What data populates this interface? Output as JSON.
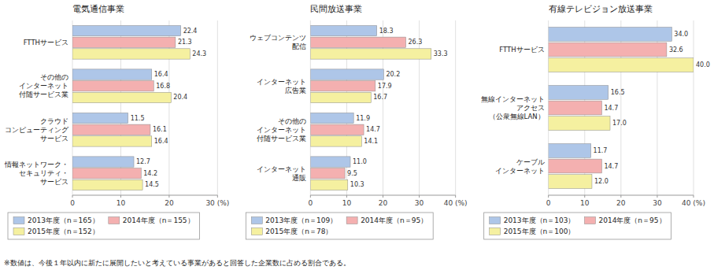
{
  "chart_data": [
    {
      "type": "bar",
      "orientation": "horizontal",
      "title": "電気通信事業",
      "categories": [
        "FTTHサービス",
        "その他の\nインターネット\n付随サービス業",
        "クラウド\nコンピューティング\nサービス",
        "情報ネットワーク・\nセキュリティ・\nサービス"
      ],
      "series": [
        {
          "name": "2013年度（n＝165）",
          "color": "#aec6e8",
          "values": [
            22.4,
            16.4,
            11.5,
            12.7
          ]
        },
        {
          "name": "2014年度（n＝155）",
          "color": "#f4b0b0",
          "values": [
            21.3,
            16.8,
            16.1,
            14.2
          ]
        },
        {
          "name": "2015年度（n＝152）",
          "color": "#f5f0a0",
          "values": [
            24.3,
            20.4,
            16.4,
            14.5
          ]
        }
      ],
      "xlim": [
        0,
        30
      ],
      "xticks": [
        0,
        10,
        20,
        {
          "value": 30,
          "label": "30 (%)"
        }
      ],
      "grid": true,
      "data_labels": true,
      "legend": "bottom",
      "annotations": [
        "※数値は、今後１年以内に新たに展開したいと考えている事業があると回答した企業数に占める割合である。"
      ]
    },
    {
      "type": "bar",
      "orientation": "horizontal",
      "title": "民間放送事業",
      "categories": [
        "ウェブコンテンツ\n配信",
        "インターネット\n広告業",
        "その他の\nインターネット\n付随サービス業",
        "インターネット\n通販"
      ],
      "series": [
        {
          "name": "2013年度（n＝109）",
          "color": "#aec6e8",
          "values": [
            18.3,
            20.2,
            11.9,
            11.0
          ],
          "value_labels": [
            "18.3",
            "20.2",
            "11.9",
            "11.0"
          ]
        },
        {
          "name": "2014年度（n＝95）",
          "color": "#f4b0b0",
          "values": [
            26.3,
            17.9,
            14.7,
            9.5
          ]
        },
        {
          "name": "2015年度（n＝78）",
          "color": "#f5f0a0",
          "values": [
            33.3,
            16.7,
            14.1,
            10.3
          ]
        }
      ],
      "xlim": [
        0,
        40
      ],
      "xticks": [
        0,
        10,
        20,
        30,
        {
          "value": 40,
          "label": "40 (%)"
        }
      ],
      "grid": true,
      "data_labels": true,
      "legend": "bottom"
    },
    {
      "type": "bar",
      "orientation": "horizontal",
      "title": "有線テレビジョン放送事業",
      "categories": [
        "FTTHサービス",
        "無線インターネット\nアクセス\n（公衆無線LAN）",
        "ケーブル\nインターネット"
      ],
      "series": [
        {
          "name": "2013年度（n＝103）",
          "color": "#aec6e8",
          "values": [
            34.0,
            16.5,
            11.7
          ],
          "value_labels": [
            "34.0",
            "16.5",
            "11.7"
          ]
        },
        {
          "name": "2014年度（n＝95）",
          "color": "#f4b0b0",
          "values": [
            32.6,
            14.7,
            14.7
          ]
        },
        {
          "name": "2015年度（n＝100）",
          "color": "#f5f0a0",
          "values": [
            40.0,
            17.0,
            12.0
          ],
          "value_labels": [
            "40.0",
            "17.0",
            "12.0"
          ]
        }
      ],
      "xlim": [
        0,
        40
      ],
      "xticks": [
        0,
        10,
        20,
        30,
        {
          "value": 40,
          "label": "40 (%)"
        }
      ],
      "grid": true,
      "data_labels": true,
      "legend": "bottom"
    }
  ]
}
